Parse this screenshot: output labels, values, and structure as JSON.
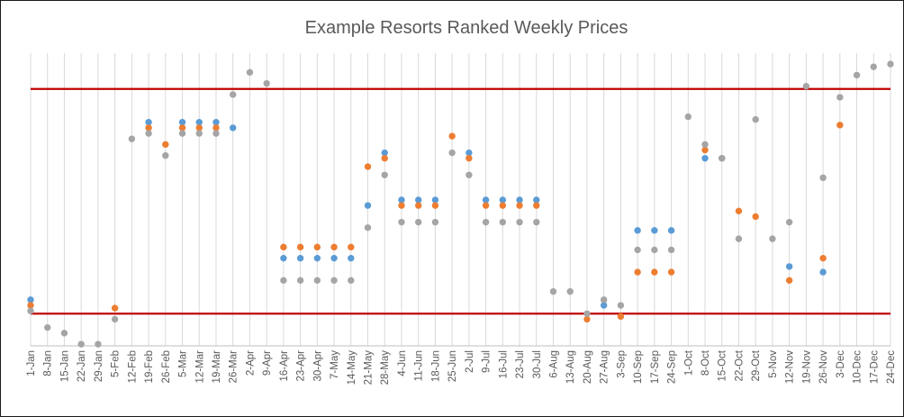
{
  "chart_data": {
    "type": "scatter",
    "title": "Example Resorts Ranked Weekly Prices",
    "xlabel": "",
    "ylabel": "",
    "ylim": [
      0,
      100
    ],
    "grid": "vertical",
    "legend": "none",
    "categories": [
      "1-Jan",
      "8-Jan",
      "15-Jan",
      "22-Jan",
      "29-Jan",
      "5-Feb",
      "12-Feb",
      "19-Feb",
      "26-Feb",
      "5-Mar",
      "12-Mar",
      "19-Mar",
      "26-Mar",
      "2-Apr",
      "9-Apr",
      "16-Apr",
      "23-Apr",
      "30-Apr",
      "7-May",
      "14-May",
      "21-May",
      "28-May",
      "4-Jun",
      "11-Jun",
      "18-Jun",
      "25-Jun",
      "2-Jul",
      "9-Jul",
      "16-Jul",
      "23-Jul",
      "30-Jul",
      "6-Aug",
      "13-Aug",
      "20-Aug",
      "27-Aug",
      "3-Sep",
      "10-Sep",
      "17-Sep",
      "24-Sep",
      "1-Oct",
      "8-Oct",
      "15-Oct",
      "22-Oct",
      "29-Oct",
      "5-Nov",
      "12-Nov",
      "19-Nov",
      "26-Nov",
      "3-Dec",
      "10-Dec",
      "17-Dec",
      "24-Dec"
    ],
    "reference_lines": [
      {
        "value": 90,
        "color": "#c00000"
      },
      {
        "value": 9,
        "color": "#c00000"
      }
    ],
    "series": [
      {
        "color": "#5b9bd5",
        "values": [
          14,
          null,
          null,
          null,
          null,
          null,
          null,
          78,
          null,
          78,
          78,
          78,
          76,
          null,
          null,
          29,
          29,
          29,
          29,
          29,
          48,
          67,
          50,
          50,
          50,
          null,
          67,
          50,
          50,
          50,
          50,
          null,
          null,
          null,
          12,
          null,
          39,
          39,
          39,
          null,
          65,
          65,
          null,
          null,
          null,
          26,
          null,
          24,
          null,
          null,
          null,
          null
        ]
      },
      {
        "color": "#ed7d31",
        "values": [
          12,
          null,
          null,
          null,
          null,
          11,
          null,
          76,
          70,
          76,
          76,
          76,
          null,
          null,
          null,
          33,
          33,
          33,
          33,
          33,
          62,
          65,
          48,
          48,
          48,
          73,
          65,
          48,
          48,
          48,
          48,
          null,
          null,
          7,
          null,
          8,
          24,
          24,
          24,
          null,
          68,
          null,
          46,
          44,
          null,
          21,
          null,
          29,
          77,
          null,
          null,
          null
        ]
      },
      {
        "color": "#a5a5a5",
        "values": [
          10,
          4,
          2,
          -2,
          -2,
          7,
          72,
          74,
          66,
          74,
          74,
          74,
          88,
          96,
          92,
          21,
          21,
          21,
          21,
          21,
          40,
          59,
          42,
          42,
          42,
          67,
          59,
          42,
          42,
          42,
          42,
          17,
          17,
          9,
          14,
          12,
          32,
          32,
          32,
          80,
          70,
          65,
          36,
          79,
          36,
          42,
          91,
          58,
          87,
          95,
          98,
          99
        ]
      }
    ]
  }
}
